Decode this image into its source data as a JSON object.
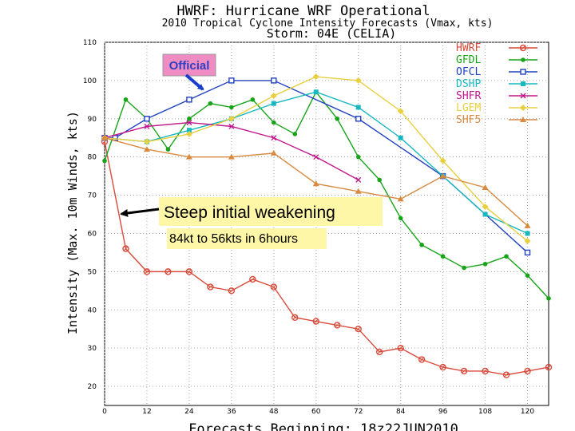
{
  "chart_data": {
    "type": "line",
    "title": "HWRF: Hurricane WRF Operational",
    "subtitle": "2010 Tropical Cyclone Intensity Forecasts (Vmax, kts)",
    "storm": "Storm: 04E (CELIA)",
    "xlabel": "Forecasts Beginning: 18z22JUN2010",
    "ylabel": "Intensity (Max. 10m Winds, kts)",
    "xlim": [
      0,
      126
    ],
    "ylim": [
      15,
      110
    ],
    "xticks": [
      0,
      12,
      24,
      36,
      48,
      60,
      72,
      84,
      96,
      108,
      120
    ],
    "yticks": [
      20,
      30,
      40,
      50,
      60,
      70,
      80,
      90,
      100,
      110
    ],
    "grid": true,
    "legend_position": "top-right",
    "series": [
      {
        "name": "HWRF",
        "color": "#d94a3a",
        "marker": "circle",
        "x": [
          0,
          6,
          12,
          18,
          24,
          30,
          36,
          42,
          48,
          54,
          60,
          66,
          72,
          78,
          84,
          90,
          96,
          102,
          108,
          114,
          120,
          126
        ],
        "y": [
          84,
          56,
          50,
          50,
          50,
          46,
          45,
          48,
          46,
          38,
          37,
          36,
          35,
          29,
          30,
          27,
          25,
          24,
          24,
          23,
          24,
          25
        ]
      },
      {
        "name": "GFDL",
        "color": "#18a418",
        "marker": "dot",
        "x": [
          0,
          6,
          12,
          18,
          24,
          30,
          36,
          42,
          48,
          54,
          60,
          66,
          72,
          78,
          84,
          90,
          96,
          102,
          108,
          114,
          120,
          126
        ],
        "y": [
          79,
          95,
          90,
          82,
          90,
          94,
          93,
          95,
          89,
          86,
          97,
          90,
          80,
          74,
          64,
          57,
          54,
          51,
          52,
          54,
          49,
          43
        ]
      },
      {
        "name": "OFCL",
        "color": "#2040c0",
        "marker": "square",
        "x": [
          0,
          3,
          12,
          24,
          36,
          48,
          72,
          96,
          120
        ],
        "y": [
          85,
          85,
          90,
          95,
          100,
          100,
          90,
          75,
          55
        ]
      },
      {
        "name": "DSHP",
        "color": "#18b8c0",
        "marker": "filled-square",
        "x": [
          0,
          12,
          24,
          36,
          48,
          60,
          72,
          84,
          96,
          108,
          120
        ],
        "y": [
          85,
          84,
          87,
          90,
          94,
          97,
          93,
          85,
          75,
          65,
          60
        ]
      },
      {
        "name": "SHFR",
        "color": "#c0188c",
        "marker": "x",
        "x": [
          0,
          12,
          24,
          36,
          48,
          60,
          72
        ],
        "y": [
          85,
          88,
          89,
          88,
          85,
          80,
          74
        ]
      },
      {
        "name": "LGEM",
        "color": "#e8d040",
        "marker": "diamond",
        "x": [
          0,
          12,
          24,
          36,
          48,
          60,
          72,
          84,
          96,
          108,
          120
        ],
        "y": [
          85,
          84,
          86,
          90,
          96,
          101,
          100,
          92,
          79,
          67,
          58
        ]
      },
      {
        "name": "SHF5",
        "color": "#d88a40",
        "marker": "triangle",
        "x": [
          0,
          12,
          24,
          36,
          48,
          60,
          72,
          84,
          96,
          108,
          120
        ],
        "y": [
          85,
          82,
          80,
          80,
          81,
          73,
          71,
          69,
          75,
          72,
          62
        ]
      }
    ],
    "annotations": {
      "official": "Official",
      "steep": "Steep initial weakening",
      "detail": "84kt to 56kts in 6hours"
    }
  }
}
